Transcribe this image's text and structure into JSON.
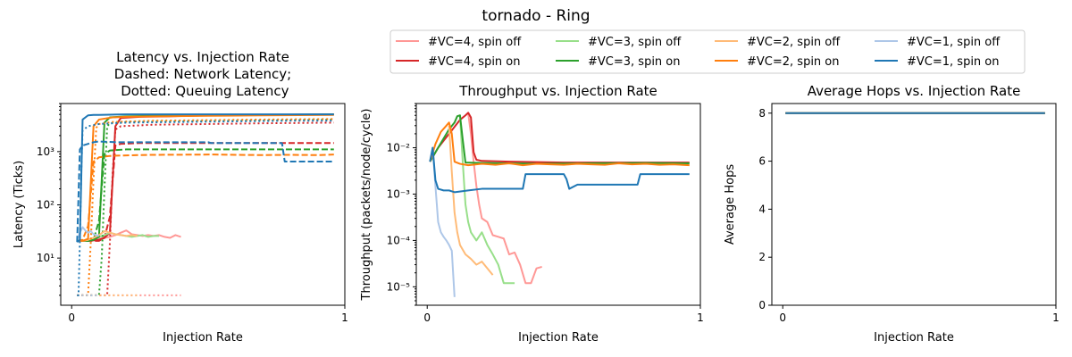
{
  "figure_title": "tornado - Ring",
  "legend": {
    "entries": [
      {
        "label": "#VC=4, spin off",
        "color": "#ff9896"
      },
      {
        "label": "#VC=4, spin on",
        "color": "#d62728"
      },
      {
        "label": "#VC=3, spin off",
        "color": "#98df8a"
      },
      {
        "label": "#VC=3, spin on",
        "color": "#2ca02c"
      },
      {
        "label": "#VC=2, spin off",
        "color": "#ffbb78"
      },
      {
        "label": "#VC=2, spin on",
        "color": "#ff7f0e"
      },
      {
        "label": "#VC=1, spin off",
        "color": "#aec7e8"
      },
      {
        "label": "#VC=1, spin on",
        "color": "#1f77b4"
      }
    ]
  },
  "chart_data": [
    {
      "type": "line",
      "title": "Latency vs. Injection Rate\nDashed: Network Latency;\n Dotted: Queuing Latency",
      "xlabel": "Injection Rate",
      "ylabel": "Latency (Ticks)",
      "xlim": [
        -0.04,
        1.0
      ],
      "ylim": [
        1.3,
        8000
      ],
      "yscale": "log",
      "xticks": [
        0,
        1
      ],
      "yticks": [
        10,
        100,
        1000
      ],
      "ytick_labels": [
        "10¹",
        "10²",
        "10³"
      ],
      "series": [
        {
          "name": "#VC=4, spin off",
          "color": "#ff9896",
          "style": "solid",
          "x": [
            0.02,
            0.04,
            0.06,
            0.08,
            0.1,
            0.12,
            0.14,
            0.16,
            0.18,
            0.2,
            0.22,
            0.24,
            0.26,
            0.28,
            0.3,
            0.32,
            0.34,
            0.36,
            0.38,
            0.4
          ],
          "y": [
            21,
            21,
            22,
            22,
            23,
            24,
            25,
            27,
            30,
            33,
            28,
            27,
            26,
            27,
            26,
            27,
            25,
            24,
            27,
            25
          ]
        },
        {
          "name": "#VC=4, spin off",
          "color": "#ff9896",
          "style": "dotted",
          "x": [
            0.02,
            0.1,
            0.2,
            0.3,
            0.4
          ],
          "y": [
            2,
            2,
            2,
            2,
            2
          ]
        },
        {
          "name": "#VC=4, spin on",
          "color": "#d62728",
          "style": "solid",
          "x": [
            0.02,
            0.06,
            0.1,
            0.12,
            0.14,
            0.16,
            0.18,
            0.25,
            0.35,
            0.5,
            0.7,
            0.96
          ],
          "y": [
            21,
            21,
            22,
            24,
            30,
            3000,
            4300,
            4500,
            4600,
            4800,
            4900,
            5000
          ]
        },
        {
          "name": "#VC=4, spin on",
          "color": "#d62728",
          "style": "dashed",
          "x": [
            0.02,
            0.1,
            0.12,
            0.14,
            0.16,
            0.18,
            0.25,
            0.4,
            0.6,
            0.8,
            0.96
          ],
          "y": [
            21,
            21,
            24,
            60,
            1300,
            1400,
            1450,
            1450,
            1450,
            1450,
            1450
          ]
        },
        {
          "name": "#VC=4, spin on",
          "color": "#d62728",
          "style": "dotted",
          "x": [
            0.02,
            0.12,
            0.13,
            0.14,
            0.15,
            0.16,
            0.18,
            0.3,
            0.5,
            0.7,
            0.96
          ],
          "y": [
            2,
            2,
            2,
            20,
            400,
            2600,
            3000,
            3200,
            3300,
            3400,
            3500
          ]
        },
        {
          "name": "#VC=3, spin off",
          "color": "#98df8a",
          "style": "solid",
          "x": [
            0.02,
            0.04,
            0.06,
            0.08,
            0.1,
            0.12,
            0.14,
            0.16,
            0.18,
            0.2,
            0.22,
            0.24,
            0.26,
            0.28,
            0.3,
            0.32
          ],
          "y": [
            21,
            21,
            22,
            23,
            25,
            27,
            30,
            28,
            27,
            26,
            25,
            26,
            27,
            25,
            26,
            26
          ]
        },
        {
          "name": "#VC=3, spin on",
          "color": "#2ca02c",
          "style": "solid",
          "x": [
            0.02,
            0.06,
            0.08,
            0.1,
            0.12,
            0.14,
            0.2,
            0.3,
            0.5,
            0.7,
            0.96
          ],
          "y": [
            21,
            21,
            22,
            25,
            3500,
            4400,
            4600,
            4700,
            4800,
            4900,
            5000
          ]
        },
        {
          "name": "#VC=3, spin on",
          "color": "#2ca02c",
          "style": "dashed",
          "x": [
            0.02,
            0.06,
            0.08,
            0.1,
            0.12,
            0.14,
            0.2,
            0.4,
            0.6,
            0.8,
            0.96
          ],
          "y": [
            21,
            21,
            22,
            50,
            900,
            1050,
            1100,
            1100,
            1100,
            1100,
            1100
          ]
        },
        {
          "name": "#VC=3, spin on",
          "color": "#2ca02c",
          "style": "dotted",
          "x": [
            0.02,
            0.1,
            0.11,
            0.12,
            0.13,
            0.14,
            0.2,
            0.4,
            0.6,
            0.8,
            0.96
          ],
          "y": [
            2,
            2,
            10,
            200,
            3000,
            3400,
            3600,
            3700,
            3800,
            3900,
            4000
          ]
        },
        {
          "name": "#VC=2, spin off",
          "color": "#ffbb78",
          "style": "solid",
          "x": [
            0.02,
            0.04,
            0.06,
            0.08,
            0.1,
            0.12,
            0.14,
            0.16,
            0.18,
            0.2,
            0.22,
            0.24
          ],
          "y": [
            21,
            21,
            22,
            24,
            27,
            32,
            30,
            28,
            27,
            26,
            27,
            26
          ]
        },
        {
          "name": "#VC=2, spin off",
          "color": "#ffbb78",
          "style": "dotted",
          "x": [
            0.02,
            0.1,
            0.2,
            0.24
          ],
          "y": [
            2,
            2,
            2,
            2
          ]
        },
        {
          "name": "#VC=2, spin on",
          "color": "#ff7f0e",
          "style": "solid",
          "x": [
            0.02,
            0.04,
            0.06,
            0.08,
            0.1,
            0.15,
            0.2,
            0.3,
            0.5,
            0.7,
            0.96
          ],
          "y": [
            21,
            21,
            23,
            3000,
            4000,
            4400,
            4500,
            4600,
            4700,
            4800,
            4900
          ]
        },
        {
          "name": "#VC=2, spin on",
          "color": "#ff7f0e",
          "style": "dashed",
          "x": [
            0.02,
            0.04,
            0.06,
            0.08,
            0.1,
            0.14,
            0.2,
            0.3,
            0.5,
            0.52,
            0.6,
            0.7,
            0.8,
            0.9,
            0.96
          ],
          "y": [
            21,
            22,
            40,
            650,
            780,
            830,
            850,
            870,
            880,
            880,
            870,
            860,
            870,
            860,
            880
          ]
        },
        {
          "name": "#VC=2, spin on",
          "color": "#ff7f0e",
          "style": "dotted",
          "x": [
            0.02,
            0.06,
            0.07,
            0.08,
            0.09,
            0.1,
            0.15,
            0.3,
            0.5,
            0.7,
            0.96
          ],
          "y": [
            2,
            2,
            20,
            300,
            2800,
            3300,
            3600,
            3800,
            3900,
            4000,
            4100
          ]
        },
        {
          "name": "#VC=1, spin off",
          "color": "#aec7e8",
          "style": "solid",
          "x": [
            0.02,
            0.03,
            0.04,
            0.05,
            0.06,
            0.07,
            0.08,
            0.09,
            0.1
          ],
          "y": [
            22,
            30,
            38,
            33,
            30,
            32,
            28,
            27,
            26
          ]
        },
        {
          "name": "#VC=1, spin off",
          "color": "#aec7e8",
          "style": "dotted",
          "x": [
            0.02,
            0.06,
            0.1
          ],
          "y": [
            2,
            2,
            2
          ]
        },
        {
          "name": "#VC=1, spin on",
          "color": "#1f77b4",
          "style": "solid",
          "x": [
            0.02,
            0.03,
            0.04,
            0.06,
            0.08,
            0.1,
            0.2,
            0.4,
            0.6,
            0.8,
            0.96
          ],
          "y": [
            20,
            22,
            4000,
            4800,
            4900,
            4900,
            5000,
            5000,
            5000,
            5000,
            5000
          ]
        },
        {
          "name": "#VC=1, spin on",
          "color": "#1f77b4",
          "style": "dashed",
          "x": [
            0.02,
            0.03,
            0.04,
            0.06,
            0.08,
            0.1,
            0.16,
            0.3,
            0.5,
            0.51,
            0.6,
            0.77,
            0.78,
            0.96
          ],
          "y": [
            20,
            1100,
            1300,
            1400,
            1500,
            1550,
            1500,
            1500,
            1500,
            1450,
            1450,
            1450,
            650,
            650
          ]
        },
        {
          "name": "#VC=1, spin on",
          "color": "#1f77b4",
          "style": "dotted",
          "x": [
            0.02,
            0.025,
            0.03,
            0.035,
            0.04,
            0.06,
            0.1,
            0.2,
            0.4,
            0.6,
            0.8,
            0.96
          ],
          "y": [
            2,
            2,
            20,
            400,
            2500,
            3000,
            3300,
            3500,
            3600,
            3700,
            3800,
            3800
          ]
        }
      ]
    },
    {
      "type": "line",
      "title": "Throughput vs. Injection Rate",
      "xlabel": "Injection Rate",
      "ylabel": "Throughput (packets/node/cycle)",
      "xlim": [
        -0.04,
        1.0
      ],
      "ylim": [
        4e-06,
        0.09
      ],
      "yscale": "log",
      "xticks": [
        0,
        1
      ],
      "yticks": [
        1e-05,
        0.0001,
        0.001,
        0.01
      ],
      "ytick_labels": [
        "10⁻⁵",
        "10⁻⁴",
        "10⁻³",
        "10⁻²"
      ],
      "series": [
        {
          "name": "#VC=4, spin off",
          "color": "#ff9896",
          "style": "solid",
          "x": [
            0.15,
            0.16,
            0.17,
            0.18,
            0.19,
            0.2,
            0.22,
            0.24,
            0.26,
            0.28,
            0.3,
            0.32,
            0.34,
            0.36,
            0.38,
            0.4,
            0.42
          ],
          "y": [
            0.055,
            0.02,
            0.005,
            0.0015,
            0.0006,
            0.0003,
            0.00025,
            0.00013,
            0.00012,
            0.00011,
            5e-05,
            5.5e-05,
            3e-05,
            1.2e-05,
            1.2e-05,
            2.5e-05,
            2.7e-05
          ]
        },
        {
          "name": "#VC=4, spin on",
          "color": "#d62728",
          "style": "solid",
          "x": [
            0.01,
            0.04,
            0.08,
            0.12,
            0.14,
            0.15,
            0.16,
            0.17,
            0.18,
            0.2,
            0.3,
            0.5,
            0.7,
            0.96
          ],
          "y": [
            0.005,
            0.01,
            0.02,
            0.04,
            0.05,
            0.057,
            0.045,
            0.008,
            0.0055,
            0.0052,
            0.005,
            0.0048,
            0.0048,
            0.0048
          ]
        },
        {
          "name": "#VC=3, spin off",
          "color": "#98df8a",
          "style": "solid",
          "x": [
            0.12,
            0.13,
            0.14,
            0.15,
            0.16,
            0.18,
            0.2,
            0.22,
            0.24,
            0.26,
            0.28,
            0.3,
            0.32
          ],
          "y": [
            0.05,
            0.005,
            0.0006,
            0.00025,
            0.00015,
            0.0001,
            0.00015,
            8e-05,
            5e-05,
            3e-05,
            1.2e-05,
            1.2e-05,
            1.2e-05
          ]
        },
        {
          "name": "#VC=3, spin on",
          "color": "#2ca02c",
          "style": "solid",
          "x": [
            0.01,
            0.04,
            0.08,
            0.1,
            0.11,
            0.12,
            0.13,
            0.14,
            0.2,
            0.4,
            0.6,
            0.8,
            0.96
          ],
          "y": [
            0.005,
            0.01,
            0.025,
            0.035,
            0.048,
            0.05,
            0.015,
            0.0048,
            0.0047,
            0.0045,
            0.0046,
            0.0047,
            0.0046
          ]
        },
        {
          "name": "#VC=2, spin off",
          "color": "#ffbb78",
          "style": "solid",
          "x": [
            0.08,
            0.09,
            0.1,
            0.11,
            0.12,
            0.14,
            0.16,
            0.18,
            0.2,
            0.22,
            0.24
          ],
          "y": [
            0.03,
            0.003,
            0.0004,
            0.00015,
            8e-05,
            5e-05,
            4e-05,
            3e-05,
            3.5e-05,
            2.5e-05,
            1.8e-05
          ]
        },
        {
          "name": "#VC=2, spin on",
          "color": "#ff7f0e",
          "style": "solid",
          "x": [
            0.01,
            0.03,
            0.05,
            0.07,
            0.08,
            0.09,
            0.1,
            0.12,
            0.15,
            0.2,
            0.25,
            0.3,
            0.35,
            0.4,
            0.45,
            0.5,
            0.55,
            0.6,
            0.65,
            0.7,
            0.75,
            0.8,
            0.85,
            0.9,
            0.96
          ],
          "y": [
            0.005,
            0.012,
            0.022,
            0.03,
            0.035,
            0.02,
            0.005,
            0.0045,
            0.0042,
            0.0045,
            0.0043,
            0.0046,
            0.0042,
            0.0045,
            0.0044,
            0.0043,
            0.0045,
            0.0044,
            0.0043,
            0.0046,
            0.0044,
            0.0045,
            0.0043,
            0.0044,
            0.0042
          ]
        },
        {
          "name": "#VC=1, spin off",
          "color": "#aec7e8",
          "style": "solid",
          "x": [
            0.02,
            0.03,
            0.04,
            0.05,
            0.06,
            0.07,
            0.08,
            0.09,
            0.1
          ],
          "y": [
            0.01,
            0.0015,
            0.00025,
            0.00015,
            0.00012,
            0.0001,
            8e-05,
            6e-05,
            6e-06
          ]
        },
        {
          "name": "#VC=1, spin on",
          "color": "#1f77b4",
          "style": "solid",
          "x": [
            0.01,
            0.02,
            0.03,
            0.04,
            0.06,
            0.08,
            0.1,
            0.15,
            0.2,
            0.25,
            0.3,
            0.35,
            0.36,
            0.4,
            0.5,
            0.51,
            0.52,
            0.55,
            0.6,
            0.7,
            0.77,
            0.78,
            0.9,
            0.96
          ],
          "y": [
            0.005,
            0.01,
            0.002,
            0.0013,
            0.0012,
            0.0012,
            0.0011,
            0.0012,
            0.0013,
            0.0013,
            0.0013,
            0.0013,
            0.0027,
            0.0027,
            0.0027,
            0.0021,
            0.0013,
            0.0016,
            0.0016,
            0.0016,
            0.0016,
            0.0027,
            0.0027,
            0.0027
          ]
        }
      ]
    },
    {
      "type": "line",
      "title": "Average Hops vs. Injection Rate",
      "xlabel": "Injection Rate",
      "ylabel": "Average Hops",
      "xlim": [
        -0.04,
        1.0
      ],
      "ylim": [
        0,
        8.4
      ],
      "yscale": "linear",
      "xticks": [
        0,
        1
      ],
      "yticks": [
        0,
        2,
        4,
        6,
        8
      ],
      "series": [
        {
          "name": "#VC=4, spin on",
          "color": "#d62728",
          "style": "solid",
          "x": [
            0.01,
            0.96
          ],
          "y": [
            8,
            8
          ]
        },
        {
          "name": "#VC=3, spin on",
          "color": "#2ca02c",
          "style": "solid",
          "x": [
            0.01,
            0.96
          ],
          "y": [
            8,
            8
          ]
        },
        {
          "name": "#VC=2, spin on",
          "color": "#ff7f0e",
          "style": "solid",
          "x": [
            0.01,
            0.96
          ],
          "y": [
            8,
            8
          ]
        },
        {
          "name": "#VC=1, spin on",
          "color": "#1f77b4",
          "style": "solid",
          "x": [
            0.01,
            0.96
          ],
          "y": [
            8,
            8
          ]
        }
      ]
    }
  ]
}
